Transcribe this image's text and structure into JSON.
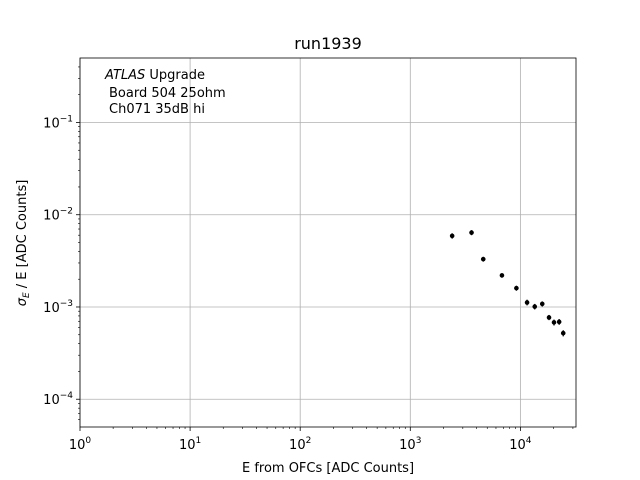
{
  "chart_data": {
    "type": "scatter",
    "title": "run1939",
    "xlabel": "E from OFCs [ADC Counts]",
    "ylabel_symbol": "σ",
    "ylabel_subscript": "E",
    "ylabel_rest": " / E [ADC Counts]",
    "xscale": "log",
    "yscale": "log",
    "xlim": [
      1,
      32000
    ],
    "ylim": [
      5e-05,
      0.5
    ],
    "grid": true,
    "x_ticks": [
      {
        "value": 1,
        "base": "10",
        "exp": "0"
      },
      {
        "value": 10,
        "base": "10",
        "exp": "1"
      },
      {
        "value": 100,
        "base": "10",
        "exp": "2"
      },
      {
        "value": 1000,
        "base": "10",
        "exp": "3"
      },
      {
        "value": 10000,
        "base": "10",
        "exp": "4"
      }
    ],
    "y_ticks": [
      {
        "value": 0.0001,
        "base": "10",
        "exp": "−4"
      },
      {
        "value": 0.001,
        "base": "10",
        "exp": "−3"
      },
      {
        "value": 0.01,
        "base": "10",
        "exp": "−2"
      },
      {
        "value": 0.1,
        "base": "10",
        "exp": "−1"
      }
    ],
    "annotations": {
      "experiment": "ATLAS",
      "experiment_suffix": " Upgrade",
      "line2": "Board 504 25ohm",
      "line3": "Ch071 35dB hi"
    },
    "marker_color": "#000000",
    "points": [
      {
        "x": 2400,
        "y": 0.0059,
        "yerr": 0.0004
      },
      {
        "x": 3600,
        "y": 0.0064,
        "yerr": 0.0004
      },
      {
        "x": 4600,
        "y": 0.0033,
        "yerr": 0.0002
      },
      {
        "x": 6800,
        "y": 0.0022,
        "yerr": 0.00012
      },
      {
        "x": 9200,
        "y": 0.0016,
        "yerr": 0.0001
      },
      {
        "x": 11500,
        "y": 0.00112,
        "yerr": 8e-05
      },
      {
        "x": 13500,
        "y": 0.00101,
        "yerr": 7e-05
      },
      {
        "x": 15800,
        "y": 0.00108,
        "yerr": 7e-05
      },
      {
        "x": 18200,
        "y": 0.00077,
        "yerr": 5e-05
      },
      {
        "x": 20200,
        "y": 0.00068,
        "yerr": 5e-05
      },
      {
        "x": 22500,
        "y": 0.00069,
        "yerr": 5e-05
      },
      {
        "x": 24500,
        "y": 0.00052,
        "yerr": 4e-05
      }
    ]
  }
}
